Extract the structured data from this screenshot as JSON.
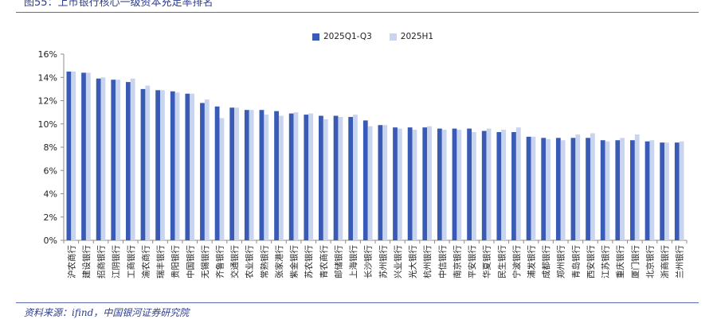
{
  "figure_title": "图55：上市银行核心一级资本充足率排名",
  "source": "资料来源：ifind，中国银河证券研究院",
  "colors": {
    "series1": "#3a5bb5",
    "series2": "#c9d5ef",
    "axis": "#8c8c8c",
    "text": "#222222",
    "title": "#2f3e8f"
  },
  "chart_data": {
    "type": "bar",
    "title": "",
    "xlabel": "",
    "ylabel": "",
    "ylim": [
      0,
      16
    ],
    "yticks": [
      "0%",
      "2%",
      "4%",
      "6%",
      "8%",
      "10%",
      "12%",
      "14%",
      "16%"
    ],
    "grid": false,
    "legend_position": "top-center",
    "categories": [
      "沪农商行",
      "建设银行",
      "招商银行",
      "江阴银行",
      "工商银行",
      "渝农商行",
      "瑞丰银行",
      "贵阳银行",
      "中国银行",
      "无锡银行",
      "齐鲁银行",
      "交通银行",
      "农业银行",
      "常熟银行",
      "张家港行",
      "紫金银行",
      "苏农银行",
      "青农商行",
      "邮储银行",
      "上海银行",
      "长沙银行",
      "苏州银行",
      "兴业银行",
      "光大银行",
      "杭州银行",
      "中信银行",
      "南京银行",
      "平安银行",
      "华夏银行",
      "民生银行",
      "宁波银行",
      "浦发银行",
      "成都银行",
      "郑州银行",
      "青岛银行",
      "西安银行",
      "江苏银行",
      "重庆银行",
      "厦门银行",
      "北京银行",
      "浙商银行",
      "兰州银行"
    ],
    "series": [
      {
        "name": "2025Q1-Q3",
        "values": [
          14.5,
          14.4,
          13.9,
          13.8,
          13.6,
          13.0,
          12.9,
          12.8,
          12.6,
          11.8,
          11.5,
          11.4,
          11.2,
          11.2,
          11.1,
          10.9,
          10.8,
          10.7,
          10.7,
          10.6,
          10.3,
          9.9,
          9.7,
          9.7,
          9.7,
          9.6,
          9.6,
          9.6,
          9.4,
          9.3,
          9.3,
          8.9,
          8.8,
          8.8,
          8.8,
          8.8,
          8.6,
          8.6,
          8.6,
          8.5,
          8.4,
          8.4
        ]
      },
      {
        "name": "2025H1",
        "values": [
          14.5,
          14.4,
          14.0,
          13.8,
          13.9,
          13.3,
          12.9,
          12.7,
          12.6,
          12.1,
          10.5,
          11.4,
          11.2,
          10.8,
          10.7,
          11.0,
          10.9,
          10.4,
          10.6,
          10.8,
          9.8,
          9.9,
          9.6,
          9.5,
          9.8,
          9.5,
          9.5,
          9.3,
          9.6,
          9.5,
          9.7,
          8.9,
          8.7,
          8.6,
          9.1,
          9.2,
          8.5,
          8.8,
          9.1,
          8.6,
          8.4,
          8.5
        ]
      }
    ]
  }
}
